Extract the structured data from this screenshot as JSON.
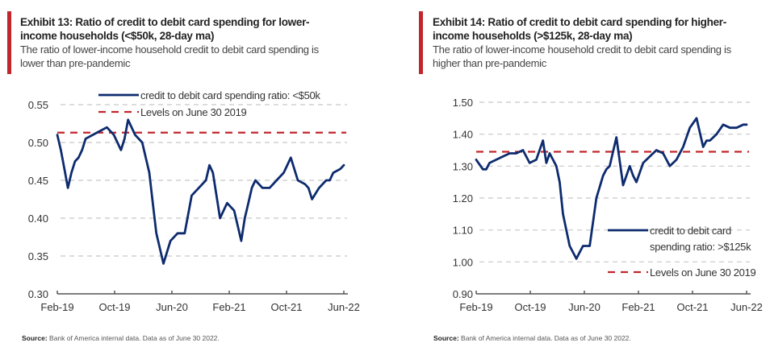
{
  "panels": [
    {
      "title_line1": "Exhibit 13: Ratio of credit to debit card spending for lower-",
      "title_line2": "income households (<$50k, 28-day ma)",
      "subtitle_line1": "The ratio of lower-income household credit to debit card spending is",
      "subtitle_line2": "lower than pre-pandemic",
      "source_label": "Source:",
      "source_text": "Bank of America internal data. Data as of June 30 2022."
    },
    {
      "title_line1": "Exhibit 14: Ratio of credit to debit card spending for higher-",
      "title_line2": "income households (>$125k, 28-day ma)",
      "subtitle_line1": "The ratio of lower-income household credit to debit card spending is",
      "subtitle_line2": "higher than pre-pandemic",
      "source_label": "Source:",
      "source_text": "Bank of America internal data. Data as of June 30 2022."
    }
  ],
  "colors": {
    "series": "#0d2b6e",
    "reference": "#c0262b",
    "grid": "#c8c8c8",
    "accent_bar": "#c0262b"
  },
  "chart_data": [
    {
      "type": "line",
      "title": "Exhibit 13: Ratio of credit to debit card spending for lower-income households (<$50k, 28-day ma)",
      "xlabel": "",
      "ylabel": "",
      "x_ticks": [
        "Feb-19",
        "Oct-19",
        "Jun-20",
        "Feb-21",
        "Oct-21",
        "Jun-22"
      ],
      "y_ticks": [
        "0.30",
        "0.35",
        "0.40",
        "0.45",
        "0.50",
        "0.55"
      ],
      "ylim": [
        0.3,
        0.55
      ],
      "grid": true,
      "legend_position": "top-right",
      "x_unit": "months since Feb-19",
      "xlim": [
        0,
        40.5
      ],
      "series": [
        {
          "name": "credit to debit card spending ratio: <$50k",
          "style": "solid",
          "x": [
            0,
            0.5,
            1,
            1.5,
            2,
            2.5,
            3,
            3.5,
            4,
            5,
            6,
            7,
            8,
            8.5,
            9,
            9.5,
            10,
            11,
            12,
            12.5,
            13,
            13.5,
            14,
            14.5,
            15,
            16,
            17,
            18,
            19,
            20,
            21,
            21.5,
            22,
            23,
            24,
            25,
            26,
            26.5,
            27,
            27.5,
            28,
            29,
            30,
            31,
            32,
            33,
            34,
            35,
            35.5,
            36,
            37,
            38,
            38.5,
            39,
            40,
            40.5
          ],
          "values": [
            0.51,
            0.49,
            0.465,
            0.44,
            0.46,
            0.475,
            0.48,
            0.49,
            0.505,
            0.51,
            0.515,
            0.52,
            0.51,
            0.5,
            0.49,
            0.505,
            0.53,
            0.51,
            0.5,
            0.48,
            0.46,
            0.42,
            0.38,
            0.36,
            0.34,
            0.37,
            0.38,
            0.38,
            0.43,
            0.44,
            0.45,
            0.47,
            0.46,
            0.4,
            0.42,
            0.41,
            0.37,
            0.4,
            0.42,
            0.44,
            0.45,
            0.44,
            0.44,
            0.45,
            0.46,
            0.48,
            0.45,
            0.445,
            0.44,
            0.425,
            0.44,
            0.45,
            0.45,
            0.46,
            0.465,
            0.47
          ]
        },
        {
          "name": "Levels on June 30 2019",
          "style": "dashed",
          "constant": 0.513
        }
      ]
    },
    {
      "type": "line",
      "title": "Exhibit 14: Ratio of credit to debit card spending for higher-income households (>$125k, 28-day ma)",
      "xlabel": "",
      "ylabel": "",
      "x_ticks": [
        "Feb-19",
        "Oct-19",
        "Jun-20",
        "Feb-21",
        "Oct-21",
        "Jun-22"
      ],
      "y_ticks": [
        "0.90",
        "1.00",
        "1.10",
        "1.20",
        "1.30",
        "1.40",
        "1.50"
      ],
      "ylim": [
        0.9,
        1.5
      ],
      "grid": true,
      "legend_position": "bottom-right",
      "x_unit": "months since Feb-19",
      "xlim": [
        0,
        40.5
      ],
      "series": [
        {
          "name": "credit to debit card spending ratio: >$125k",
          "style": "solid",
          "x": [
            0,
            1,
            1.5,
            2,
            3,
            4,
            5,
            6,
            7,
            8,
            9,
            10,
            10.5,
            11,
            12,
            12.5,
            13,
            14,
            15,
            15.5,
            16,
            17,
            18,
            19,
            19.5,
            20,
            21,
            22,
            23,
            23.5,
            24,
            25,
            26,
            27,
            28,
            29,
            30,
            31,
            32,
            33,
            34,
            34.5,
            35,
            36,
            37,
            38,
            39,
            40,
            40.5
          ],
          "values": [
            1.32,
            1.29,
            1.29,
            1.31,
            1.32,
            1.33,
            1.34,
            1.34,
            1.35,
            1.31,
            1.32,
            1.38,
            1.31,
            1.34,
            1.3,
            1.25,
            1.15,
            1.05,
            1.01,
            1.03,
            1.05,
            1.05,
            1.2,
            1.27,
            1.29,
            1.3,
            1.39,
            1.24,
            1.3,
            1.27,
            1.25,
            1.31,
            1.33,
            1.35,
            1.34,
            1.3,
            1.32,
            1.36,
            1.42,
            1.45,
            1.36,
            1.38,
            1.38,
            1.4,
            1.43,
            1.42,
            1.42,
            1.43,
            1.43
          ]
        },
        {
          "name": "Levels on June 30 2019",
          "style": "dashed",
          "constant": 1.345
        }
      ]
    }
  ]
}
